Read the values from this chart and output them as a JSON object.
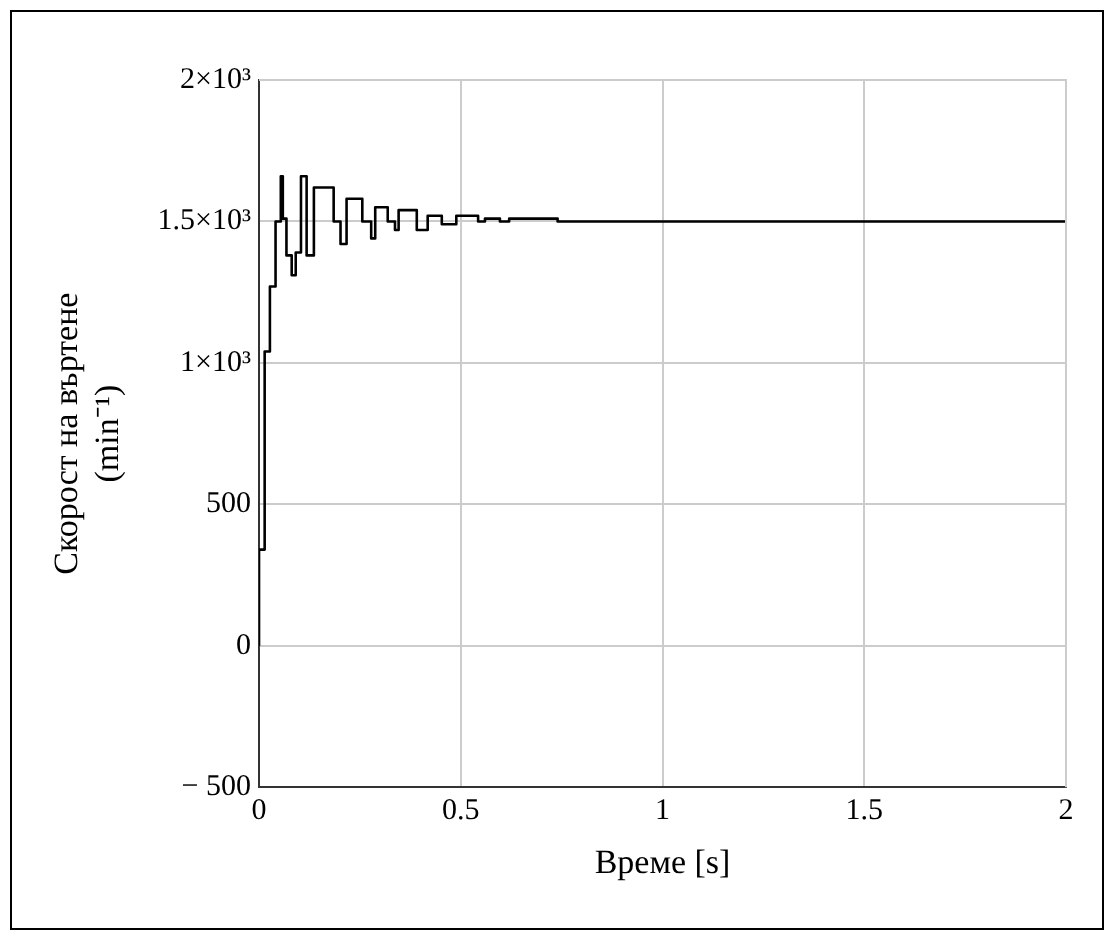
{
  "chart_data": {
    "type": "step",
    "xlabel": "Време [s]",
    "ylabel": "Скорост на въртене\n(min⁻¹)",
    "x": [
      0,
      0.014,
      0.027,
      0.041,
      0.054,
      0.059,
      0.068,
      0.081,
      0.091,
      0.104,
      0.118,
      0.136,
      0.185,
      0.202,
      0.217,
      0.256,
      0.278,
      0.288,
      0.319,
      0.337,
      0.346,
      0.391,
      0.418,
      0.453,
      0.489,
      0.543,
      0.56,
      0.597,
      0.62,
      0.74,
      0.75,
      2
    ],
    "values": [
      0,
      340,
      1040,
      1270,
      1500,
      1660,
      1510,
      1380,
      1310,
      1390,
      1660,
      1380,
      1620,
      1500,
      1420,
      1580,
      1500,
      1440,
      1550,
      1500,
      1470,
      1540,
      1470,
      1520,
      1490,
      1520,
      1500,
      1510,
      1500,
      1510,
      1500,
      1500
    ],
    "color": "#000000",
    "xlim": [
      0,
      2
    ],
    "xticks": [
      0,
      0.5,
      1,
      1.5,
      2
    ],
    "ylim": [
      -500,
      2000
    ],
    "yticks": [
      {
        "value": -500,
        "label": "− 500"
      },
      0,
      500,
      {
        "value": 1000,
        "label": "1×10³"
      },
      {
        "value": 1500,
        "label": "1.5×10³"
      },
      {
        "value": 2000,
        "label": "2×10³"
      }
    ],
    "grid": true
  }
}
